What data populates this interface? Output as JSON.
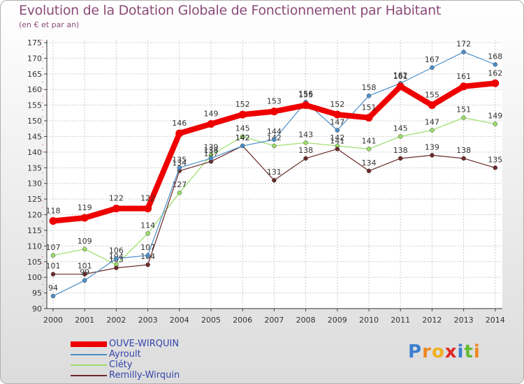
{
  "header": {
    "title": "Evolution de la Dotation Globale de Fonctionnement par Habitant",
    "subtitle": "(en € et par an)"
  },
  "chart_data": {
    "type": "line",
    "title": "Evolution de la Dotation Globale de Fonctionnement par Habitant",
    "subtitle": "(en € et par an)",
    "xlabel": "",
    "ylabel": "",
    "ylim": [
      90,
      175
    ],
    "yticks": [
      90,
      95,
      100,
      105,
      110,
      115,
      120,
      125,
      130,
      135,
      140,
      145,
      150,
      155,
      160,
      165,
      170,
      175
    ],
    "categories": [
      "2000",
      "2001",
      "2002",
      "2003",
      "2004",
      "2005",
      "2006",
      "2007",
      "2008",
      "2009",
      "2010",
      "2011",
      "2012",
      "2013",
      "2014"
    ],
    "grid": true,
    "legend": "bottom-left",
    "series": [
      {
        "name": "Clety",
        "label": "Cléty",
        "color": "#99dd66",
        "values": [
          107,
          109,
          104,
          114,
          127,
          139,
          145,
          142,
          143,
          142,
          141,
          145,
          147,
          151,
          149
        ]
      },
      {
        "name": "Remilly-Wirquin",
        "label": "Remilly-Wirquin",
        "color": "#6b2a2a",
        "values": [
          101,
          101,
          103,
          104,
          134,
          137,
          142,
          131,
          138,
          141,
          134,
          138,
          139,
          138,
          135
        ]
      },
      {
        "name": "Ayroult",
        "label": "Ayroult",
        "color": "#4a8ec8",
        "values": [
          94,
          99,
          106,
          107,
          135,
          138,
          142,
          144,
          156,
          147,
          158,
          162,
          167,
          172,
          168
        ]
      },
      {
        "name": "OUVE-WIRQUIN",
        "label": "OUVE-WIRQUIN",
        "color": "#ee0000",
        "values": [
          118,
          119,
          122,
          122,
          146,
          149,
          152,
          153,
          155,
          152,
          151,
          161,
          155,
          161,
          162
        ]
      }
    ]
  },
  "legend_items": [
    {
      "label": "OUVE-WIRQUIN",
      "color": "#ee0000"
    },
    {
      "label": "Ayroult",
      "color": "#4a8ec8"
    },
    {
      "label": "Cléty",
      "color": "#99dd66"
    },
    {
      "label": "Remilly-Wirquin",
      "color": "#6b2a2a"
    }
  ],
  "logo": {
    "letters": [
      "P",
      "r",
      "o",
      "x",
      "i",
      "t",
      "i"
    ],
    "colors": [
      "#3a7fd0",
      "#ee8822",
      "#f0b020",
      "#e02828",
      "#3a7fd0",
      "#66bb33",
      "#ee8822"
    ]
  }
}
